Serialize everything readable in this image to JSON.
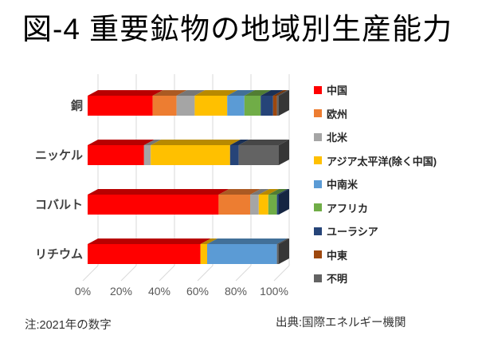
{
  "title": "図-4 重要鉱物の地域別生産能力",
  "note_left": "注:2021年の数字",
  "source": "出典:国際エネルギー機関",
  "chart_data": {
    "type": "bar",
    "subtype": "horizontal-stacked-3d",
    "unit": "percent",
    "title": "図-4 重要鉱物の地域別生産能力",
    "categories": [
      "銅",
      "ニッケル",
      "コバルト",
      "リチウム"
    ],
    "x_ticks": [
      "0%",
      "20%",
      "40%",
      "60%",
      "80%",
      "100%"
    ],
    "xlim": [
      0,
      100
    ],
    "grid": true,
    "legend_position": "right",
    "series": [
      {
        "name": "中国",
        "color": "#FF0000",
        "values": [
          34,
          29.5,
          68.5,
          59
        ]
      },
      {
        "name": "欧州",
        "color": "#ED7D31",
        "values": [
          12.5,
          0,
          16.5,
          0
        ]
      },
      {
        "name": "北米",
        "color": "#A5A5A5",
        "values": [
          9.5,
          3.5,
          4.5,
          0
        ]
      },
      {
        "name": "アジア太平洋(除く中国)",
        "color": "#FFC000",
        "values": [
          17,
          41.5,
          5,
          3.5
        ]
      },
      {
        "name": "中南米",
        "color": "#5B9BD5",
        "values": [
          9,
          0,
          0,
          36.5
        ]
      },
      {
        "name": "アフリカ",
        "color": "#70AD47",
        "values": [
          8.5,
          0,
          4.5,
          0
        ]
      },
      {
        "name": "ユーラシア",
        "color": "#264478",
        "values": [
          6.5,
          4.5,
          1,
          0
        ]
      },
      {
        "name": "中東",
        "color": "#9E480E",
        "values": [
          2,
          0,
          0,
          0
        ]
      },
      {
        "name": "不明",
        "color": "#636363",
        "values": [
          1,
          21,
          0,
          1
        ]
      }
    ]
  }
}
